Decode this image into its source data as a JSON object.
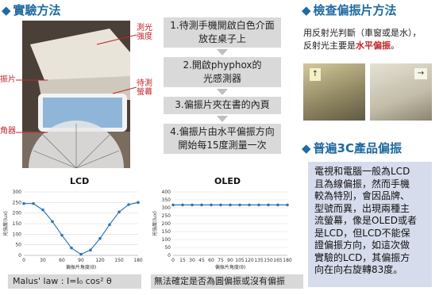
{
  "left_section": {
    "title": "實驗方法",
    "labels": {
      "light_strength": [
        "測光",
        "強度"
      ],
      "polarizer": "振片",
      "screen_under_test": [
        "待測",
        "螢幕"
      ],
      "protractor": "角器"
    }
  },
  "steps": [
    [
      "1.待測手機開啟白色介面",
      "放在桌子上"
    ],
    [
      "2.開啟phyphox的",
      "光感測器"
    ],
    [
      "3.偏振片夾在書的內頁"
    ],
    [
      "4.偏振片由水平偏振方向",
      "開始每15度測量一次"
    ]
  ],
  "right_top": {
    "title": "檢查偏振片方法",
    "text_line1": "用反射光判斷（車窗或是水），",
    "text_line2_prefix": "反射光主要是",
    "text_line2_highlight": "水平偏振",
    "text_line2_suffix": "。"
  },
  "right_bottom": {
    "title": "普遍3C產品偏振",
    "lines": [
      "電視和電腦一般為LCD",
      "且為線偏振，然而手機",
      "較為特別，會因品牌、",
      "型號而異，出現兩種主",
      "流螢幕，像是OLED或者",
      "是LCD，但LCD不能保",
      "證偏振方向，如這次做",
      "實驗的LCD，其偏振方",
      "向在向右旋轉83度。"
    ]
  },
  "captions": {
    "lcd": "Malus'  law : I=I₀ cos² θ",
    "oled": "無法確定是否為圓偏振或沒有偏振"
  },
  "chart_data": [
    {
      "type": "line",
      "title": "LCD",
      "xlabel": "偏振片角度(θ)",
      "ylabel": "光強度(lux)",
      "x": [
        0,
        15,
        30,
        45,
        60,
        75,
        90,
        105,
        120,
        135,
        150,
        165,
        180
      ],
      "y": [
        245,
        245,
        215,
        160,
        95,
        35,
        5,
        25,
        80,
        145,
        205,
        240,
        250
      ],
      "xlim": [
        0,
        180
      ],
      "ylim": [
        0,
        300
      ],
      "xticks": [
        0,
        30,
        60,
        90,
        120,
        150,
        180
      ],
      "yticks": [
        0,
        50,
        100,
        150,
        200,
        250,
        300
      ],
      "grid": true
    },
    {
      "type": "line",
      "title": "OLED",
      "xlabel": "偏振片角度(θ)",
      "ylabel": "光強度(lux)",
      "x": [
        0,
        15,
        30,
        45,
        60,
        75,
        90,
        105,
        120,
        135,
        150,
        165,
        180
      ],
      "y": [
        318,
        318,
        318,
        318,
        318,
        318,
        318,
        318,
        318,
        318,
        318,
        318,
        318
      ],
      "xlim": [
        0,
        180
      ],
      "ylim": [
        0,
        400
      ],
      "xticks": [
        0,
        15,
        30,
        45,
        60,
        75,
        90,
        105,
        120,
        135,
        150,
        165,
        180
      ],
      "yticks": [
        0,
        50,
        100,
        150,
        200,
        250,
        300,
        350,
        400
      ],
      "grid": true
    }
  ],
  "colors": {
    "title_blue": "#1f6aa0",
    "step_bg": "#d9d9d9",
    "info_bg": "#d6dcec",
    "accent_red": "#c0262c",
    "line_blue": "#2e75b6"
  }
}
